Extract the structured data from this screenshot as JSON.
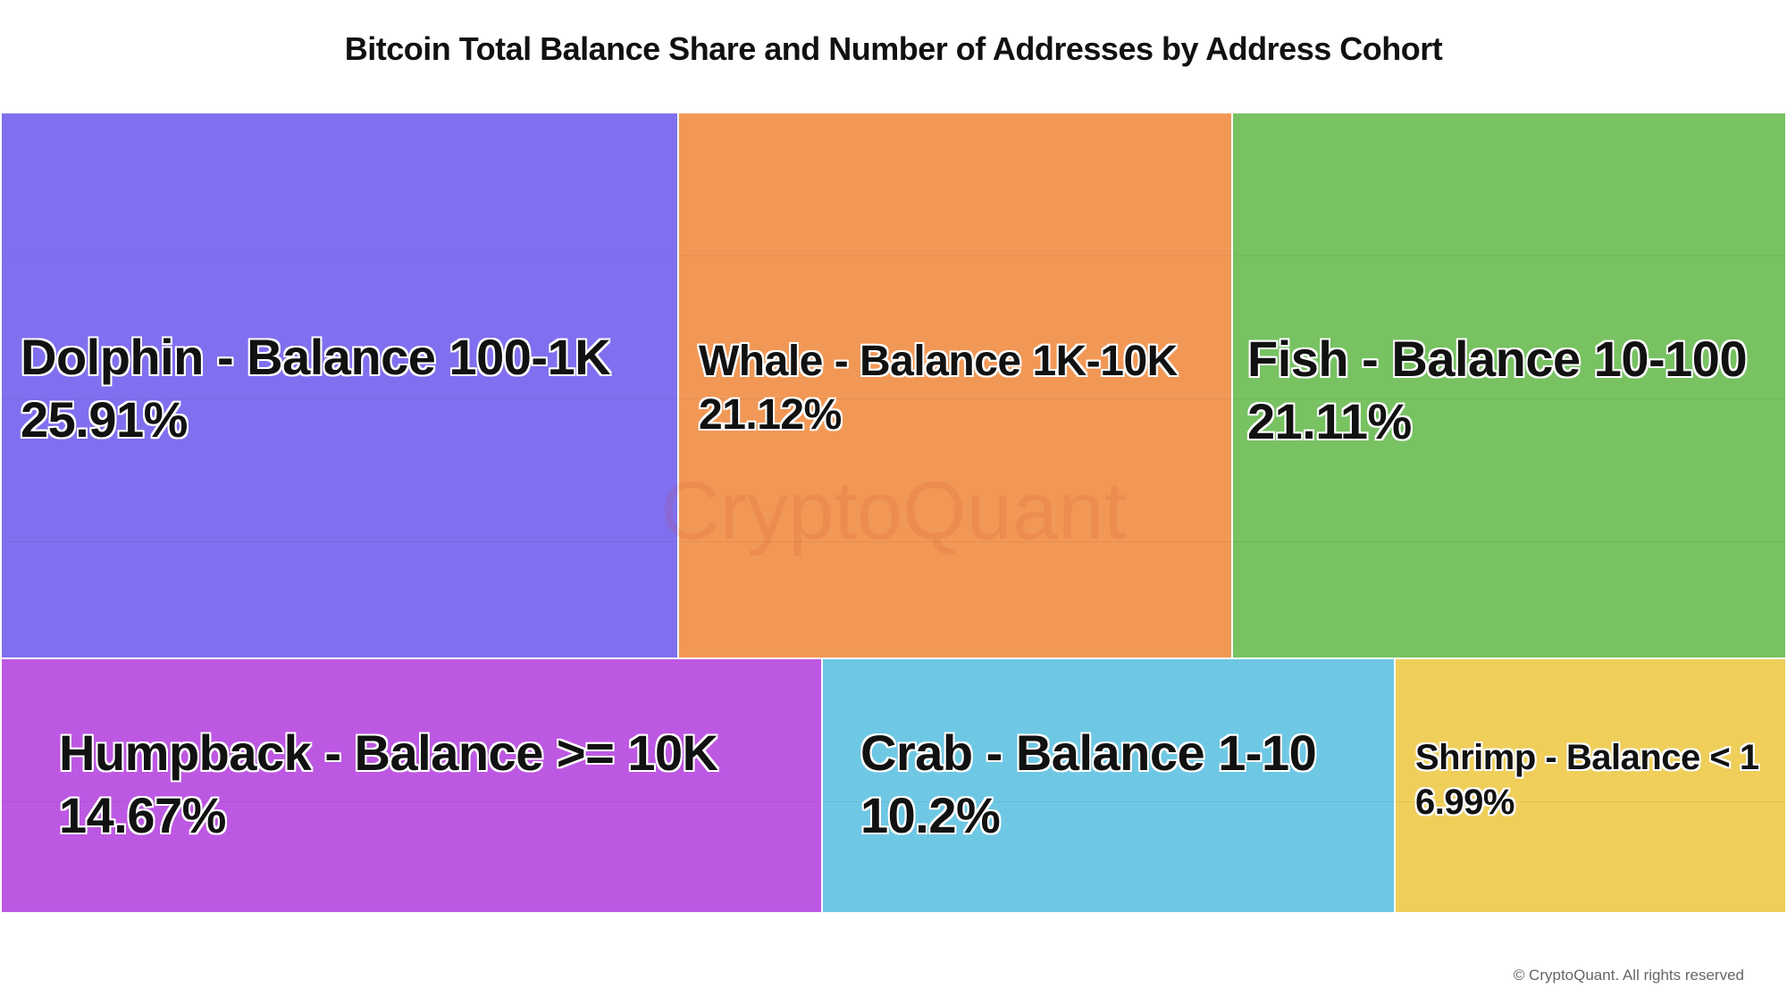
{
  "chart_data": {
    "type": "treemap",
    "title": "Bitcoin Total Balance Share and Number of Addresses by Address Cohort",
    "items": [
      {
        "label": "Dolphin - Balance 100-1K",
        "value": 25.91,
        "value_label": "25.91%",
        "color": "#8070ef"
      },
      {
        "label": "Whale - Balance 1K-10K",
        "value": 21.12,
        "value_label": "21.12%",
        "color": "#f29856"
      },
      {
        "label": "Fish - Balance 10-100",
        "value": 21.11,
        "value_label": "21.11%",
        "color": "#78c262"
      },
      {
        "label": "Humpback - Balance >= 10K",
        "value": 14.67,
        "value_label": "14.67%",
        "color": "#bd58e2"
      },
      {
        "label": "Crab - Balance 1-10",
        "value": 10.2,
        "value_label": "10.2%",
        "color": "#6ec8e4"
      },
      {
        "label": "Shrimp - Balance < 1",
        "value": 6.99,
        "value_label": "6.99%",
        "color": "#efcf5a"
      }
    ]
  },
  "watermark": "CryptoQuant",
  "footer": "© CryptoQuant. All rights reserved"
}
